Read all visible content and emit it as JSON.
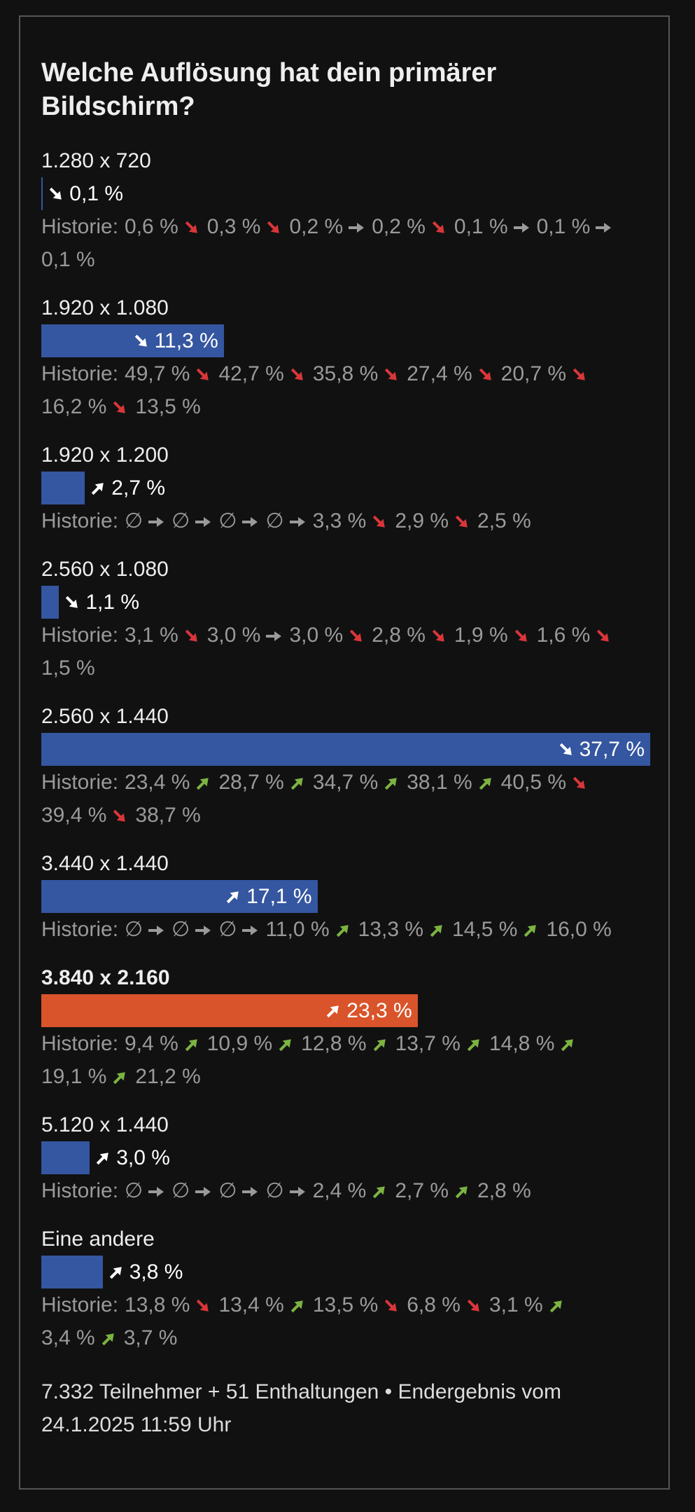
{
  "poll": {
    "type": "bar",
    "title": "Welche Auflösung hat dein primärer Bildschirm?",
    "history_label": "Historie:",
    "options": [
      {
        "label": "1.280 x 720",
        "value": 0.1,
        "value_label": "0,1 %",
        "trend": "down",
        "color": "#3556a0",
        "history": [
          "0,6 %",
          "0,3 %",
          "0,2 %",
          "0,2 %",
          "0,1 %",
          "0,1 %",
          "0,1 %"
        ],
        "history_trends": [
          "down",
          "down",
          "flat",
          "down",
          "flat",
          "flat"
        ]
      },
      {
        "label": "1.920 x 1.080",
        "value": 11.3,
        "value_label": "11,3 %",
        "trend": "down",
        "color": "#3556a0",
        "history": [
          "49,7 %",
          "42,7 %",
          "35,8 %",
          "27,4 %",
          "20,7 %",
          "16,2 %",
          "13,5 %"
        ],
        "history_trends": [
          "down",
          "down",
          "down",
          "down",
          "down",
          "down"
        ]
      },
      {
        "label": "1.920 x 1.200",
        "value": 2.7,
        "value_label": "2,7 %",
        "trend": "up",
        "color": "#3556a0",
        "history": [
          "∅",
          "∅",
          "∅",
          "∅",
          "3,3 %",
          "2,9 %",
          "2,5 %"
        ],
        "history_trends": [
          "flat",
          "flat",
          "flat",
          "flat",
          "down",
          "down"
        ]
      },
      {
        "label": "2.560 x 1.080",
        "value": 1.1,
        "value_label": "1,1 %",
        "trend": "down",
        "color": "#3556a0",
        "history": [
          "3,1 %",
          "3,0 %",
          "3,0 %",
          "2,8 %",
          "1,9 %",
          "1,6 %",
          "1,5 %"
        ],
        "history_trends": [
          "down",
          "flat",
          "down",
          "down",
          "down",
          "down"
        ]
      },
      {
        "label": "2.560 x 1.440",
        "value": 37.7,
        "value_label": "37,7 %",
        "trend": "down",
        "color": "#3556a0",
        "history": [
          "23,4 %",
          "28,7 %",
          "34,7 %",
          "38,1 %",
          "40,5 %",
          "39,4 %",
          "38,7 %"
        ],
        "history_trends": [
          "up",
          "up",
          "up",
          "up",
          "down",
          "down"
        ]
      },
      {
        "label": "3.440 x 1.440",
        "value": 17.1,
        "value_label": "17,1 %",
        "trend": "up",
        "color": "#3556a0",
        "history": [
          "∅",
          "∅",
          "∅",
          "11,0 %",
          "13,3 %",
          "14,5 %",
          "16,0 %"
        ],
        "history_trends": [
          "flat",
          "flat",
          "flat",
          "up",
          "up",
          "up"
        ]
      },
      {
        "label": "3.840 x 2.160",
        "value": 23.3,
        "value_label": "23,3 %",
        "trend": "up",
        "color": "#d9542a",
        "highlight": true,
        "history": [
          "9,4 %",
          "10,9 %",
          "12,8 %",
          "13,7 %",
          "14,8 %",
          "19,1 %",
          "21,2 %"
        ],
        "history_trends": [
          "up",
          "up",
          "up",
          "up",
          "up",
          "up"
        ]
      },
      {
        "label": "5.120 x 1.440",
        "value": 3.0,
        "value_label": "3,0 %",
        "trend": "up",
        "color": "#3556a0",
        "history": [
          "∅",
          "∅",
          "∅",
          "∅",
          "2,4 %",
          "2,7 %",
          "2,8 %"
        ],
        "history_trends": [
          "flat",
          "flat",
          "flat",
          "flat",
          "up",
          "up"
        ]
      },
      {
        "label": "Eine andere",
        "value": 3.8,
        "value_label": "3,8 %",
        "trend": "up",
        "color": "#3556a0",
        "history": [
          "13,8 %",
          "13,4 %",
          "13,5 %",
          "6,8 %",
          "3,1 %",
          "3,4 %",
          "3,7 %"
        ],
        "history_trends": [
          "down",
          "up",
          "down",
          "down",
          "up",
          "up"
        ]
      }
    ],
    "footer": "7.332 Teilnehmer + 51 Enthaltungen • Endergebnis vom 24.1.2025 11:59 Uhr"
  }
}
